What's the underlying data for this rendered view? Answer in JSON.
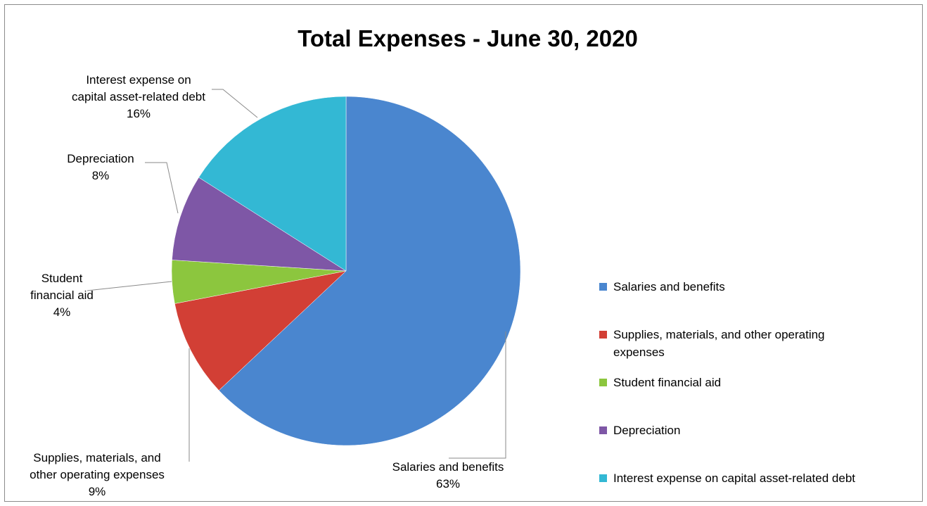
{
  "chart_data": {
    "type": "pie",
    "title": "Total Expenses - June 30, 2020",
    "categories": [
      "Salaries and benefits",
      "Supplies, materials, and other operating expenses",
      "Student financial aid",
      "Depreciation",
      "Interest expense on capital asset-related debt"
    ],
    "values": [
      63,
      9,
      4,
      8,
      16
    ],
    "units": "%",
    "data_labels": [
      {
        "lines": [
          "Salaries and benefits"
        ],
        "value": "63%"
      },
      {
        "lines": [
          "Supplies, materials, and",
          "other operating expenses"
        ],
        "value": "9%"
      },
      {
        "lines": [
          "Student",
          "financial aid"
        ],
        "value": "4%"
      },
      {
        "lines": [
          "Depreciation"
        ],
        "value": "8%"
      },
      {
        "lines": [
          "Interest expense on",
          "capital asset-related debt"
        ],
        "value": "16%"
      }
    ],
    "colors": [
      "#4a86cf",
      "#d23f35",
      "#8cc63e",
      "#7e57a6",
      "#33b8d4"
    ],
    "legend": {
      "placement": "right",
      "entries": [
        {
          "lines": [
            "Salaries and benefits"
          ]
        },
        {
          "lines": [
            "Supplies, materials, and other operating",
            "expenses"
          ]
        },
        {
          "lines": [
            "Student financial aid"
          ]
        },
        {
          "lines": [
            "Depreciation"
          ]
        },
        {
          "lines": [
            "Interest expense on capital asset-related debt"
          ]
        }
      ]
    }
  }
}
